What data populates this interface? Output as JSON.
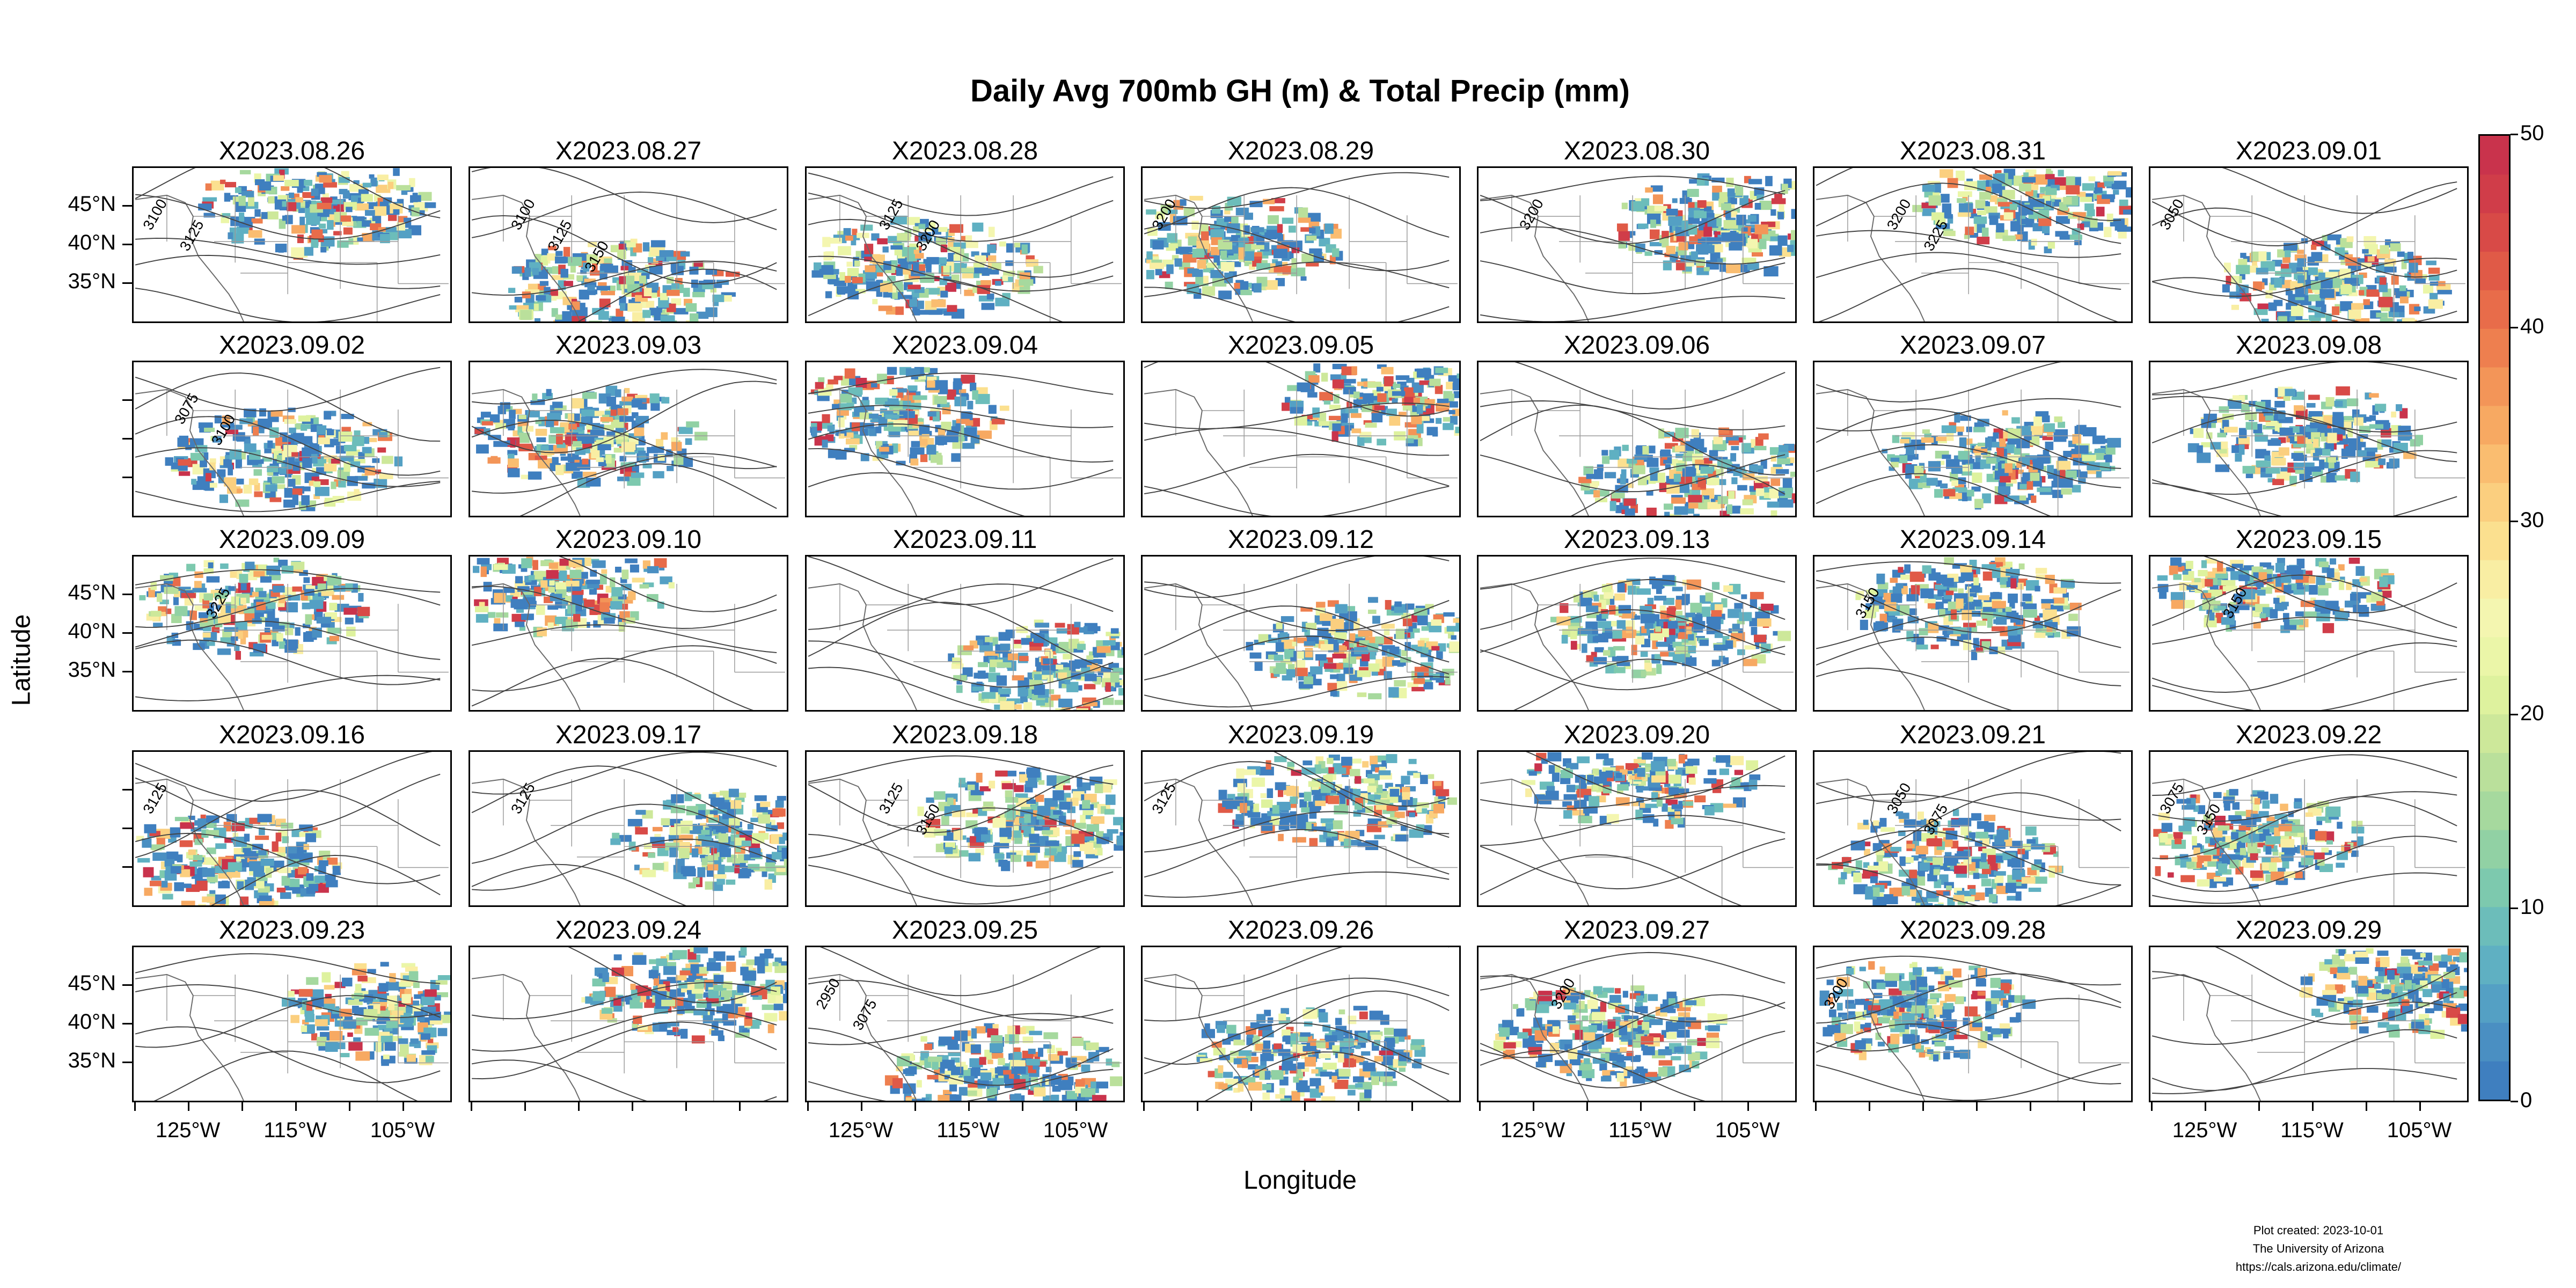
{
  "title": "Daily Avg 700mb GH (m) & Total Precip (mm)",
  "panels": [
    {
      "date": "X2023.08.26",
      "contours": [
        "3100",
        "3125"
      ]
    },
    {
      "date": "X2023.08.27",
      "contours": [
        "3100",
        "3125",
        "3150"
      ]
    },
    {
      "date": "X2023.08.28",
      "contours": [
        "3125",
        "3200"
      ]
    },
    {
      "date": "X2023.08.29",
      "contours": [
        "3200"
      ]
    },
    {
      "date": "X2023.08.30",
      "contours": [
        "3200"
      ]
    },
    {
      "date": "X2023.08.31",
      "contours": [
        "3200",
        "3225"
      ]
    },
    {
      "date": "X2023.09.01",
      "contours": [
        "3050"
      ]
    },
    {
      "date": "X2023.09.02",
      "contours": [
        "3075",
        "3100"
      ]
    },
    {
      "date": "X2023.09.03",
      "contours": []
    },
    {
      "date": "X2023.09.04",
      "contours": []
    },
    {
      "date": "X2023.09.05",
      "contours": []
    },
    {
      "date": "X2023.09.06",
      "contours": []
    },
    {
      "date": "X2023.09.07",
      "contours": []
    },
    {
      "date": "X2023.09.08",
      "contours": []
    },
    {
      "date": "X2023.09.09",
      "contours": [
        "3225"
      ]
    },
    {
      "date": "X2023.09.10",
      "contours": []
    },
    {
      "date": "X2023.09.11",
      "contours": []
    },
    {
      "date": "X2023.09.12",
      "contours": []
    },
    {
      "date": "X2023.09.13",
      "contours": []
    },
    {
      "date": "X2023.09.14",
      "contours": [
        "3150"
      ]
    },
    {
      "date": "X2023.09.15",
      "contours": [
        "3150"
      ]
    },
    {
      "date": "X2023.09.16",
      "contours": [
        "3125"
      ]
    },
    {
      "date": "X2023.09.17",
      "contours": [
        "3125"
      ]
    },
    {
      "date": "X2023.09.18",
      "contours": [
        "3125",
        "3150"
      ]
    },
    {
      "date": "X2023.09.19",
      "contours": [
        "3125"
      ]
    },
    {
      "date": "X2023.09.20",
      "contours": []
    },
    {
      "date": "X2023.09.21",
      "contours": [
        "3050",
        "3075"
      ]
    },
    {
      "date": "X2023.09.22",
      "contours": [
        "3075",
        "3150"
      ]
    },
    {
      "date": "X2023.09.23",
      "contours": []
    },
    {
      "date": "X2023.09.24",
      "contours": []
    },
    {
      "date": "X2023.09.25",
      "contours": [
        "2950",
        "3075"
      ]
    },
    {
      "date": "X2023.09.26",
      "contours": []
    },
    {
      "date": "X2023.09.27",
      "contours": [
        "3200"
      ]
    },
    {
      "date": "X2023.09.28",
      "contours": [
        "3200"
      ]
    },
    {
      "date": "X2023.09.29",
      "contours": []
    }
  ],
  "lat_ticks": [
    "45°N",
    "40°N",
    "35°N"
  ],
  "lon_ticks": [
    "125°W",
    "115°W",
    "105°W"
  ],
  "xlabel": "Longitude",
  "ylabel": "Latitude",
  "colorbar": {
    "ticks": [
      "0",
      "10",
      "20",
      "30",
      "40",
      "50"
    ],
    "colors": [
      "#3f7fbf",
      "#4a8fc2",
      "#54a0c4",
      "#5fb0c2",
      "#6cbdba",
      "#7dc9ae",
      "#91d1a4",
      "#a6d99e",
      "#bae09b",
      "#cde89a",
      "#def29e",
      "#ebf6a8",
      "#f4f6b0",
      "#f9eea3",
      "#fbe08f",
      "#fbcf7f",
      "#fabd70",
      "#f7a962",
      "#f39558",
      "#ee7f4f",
      "#e86c4a",
      "#e05a47",
      "#d84a47",
      "#d03d49",
      "#c9334c"
    ]
  },
  "footer": {
    "line1": "Plot created: 2023-10-01",
    "line2": "The University of Arizona",
    "line3": "https://cals.arizona.edu/climate/"
  }
}
